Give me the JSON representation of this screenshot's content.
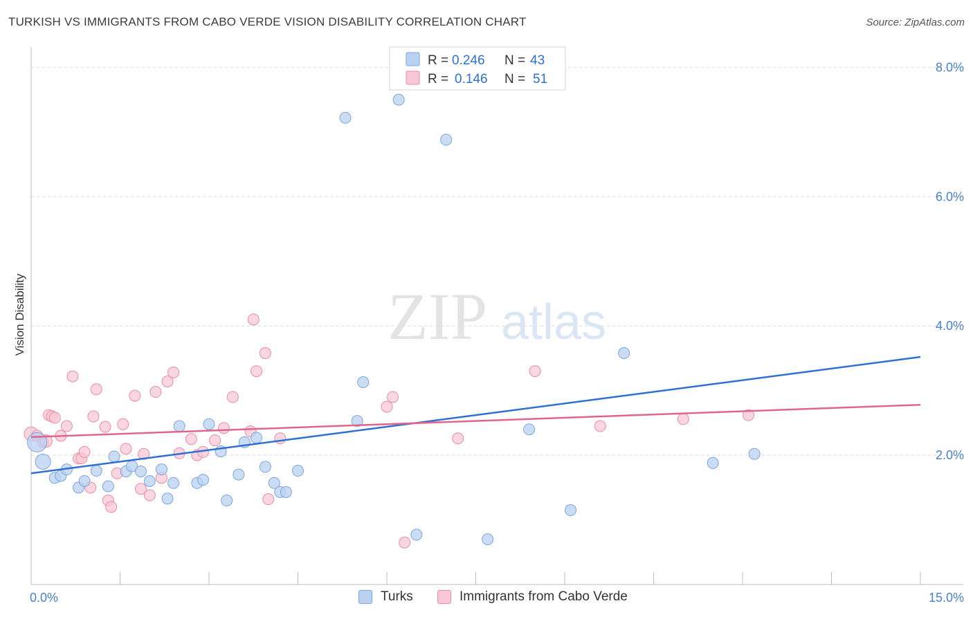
{
  "header": {
    "title": "TURKISH VS IMMIGRANTS FROM CABO VERDE VISION DISABILITY CORRELATION CHART",
    "source": "Source: ZipAtlas.com"
  },
  "watermark": {
    "zip": "ZIP",
    "atlas": "atlas"
  },
  "colors": {
    "blue_fill": "#b9d2f2",
    "blue_stroke": "#7aa5de",
    "blue_line": "#2e6fd4",
    "pink_fill": "#f8c8d6",
    "pink_stroke": "#e98aa7",
    "pink_line": "#e0648e",
    "tick_label": "#4a7fd0",
    "grid": "#d9d9d9"
  },
  "legend_box": {
    "rows": [
      {
        "r_label": "R =",
        "r_value": "0.246",
        "n_label": "N =",
        "n_value": "43"
      },
      {
        "r_label": "R =",
        "r_value": "0.146",
        "n_label": "N =",
        "n_value": "51"
      }
    ]
  },
  "legend_bottom": {
    "items": [
      "Turks",
      "Immigrants from Cabo Verde"
    ]
  },
  "chart_data": {
    "type": "scatter",
    "title": "TURKISH VS IMMIGRANTS FROM CABO VERDE VISION DISABILITY CORRELATION CHART",
    "ylabel": "Vision Disability",
    "xlabel": "",
    "xlim": [
      0,
      15
    ],
    "ylim": [
      0,
      8.4
    ],
    "x_tick_labels": [
      "0.0%",
      "15.0%"
    ],
    "y_ticks": [
      2,
      4,
      6,
      8
    ],
    "y_tick_labels": [
      "2.0%",
      "4.0%",
      "6.0%",
      "8.0%"
    ],
    "grid": true,
    "legend_position": "top-center",
    "series": [
      {
        "name": "Turks",
        "r": 0.246,
        "n": 43,
        "trend": {
          "x": [
            0,
            15
          ],
          "y": [
            1.72,
            3.52
          ]
        },
        "points": [
          [
            0.1,
            2.2,
            14
          ],
          [
            0.2,
            1.9,
            11
          ],
          [
            0.4,
            1.65,
            8
          ],
          [
            0.5,
            1.68,
            8
          ],
          [
            0.6,
            1.78,
            8
          ],
          [
            0.8,
            1.5,
            8
          ],
          [
            0.9,
            1.6,
            8
          ],
          [
            1.1,
            1.76,
            8
          ],
          [
            1.3,
            1.52,
            8
          ],
          [
            1.4,
            1.98,
            8
          ],
          [
            1.6,
            1.75,
            8
          ],
          [
            1.7,
            1.83,
            8
          ],
          [
            1.85,
            1.75,
            8
          ],
          [
            2.0,
            1.6,
            8
          ],
          [
            2.2,
            1.78,
            8
          ],
          [
            2.3,
            1.33,
            8
          ],
          [
            2.4,
            1.57,
            8
          ],
          [
            2.5,
            2.45,
            8
          ],
          [
            2.8,
            1.57,
            8
          ],
          [
            2.9,
            1.62,
            8
          ],
          [
            3.0,
            2.48,
            8
          ],
          [
            3.2,
            2.06,
            8
          ],
          [
            3.3,
            1.3,
            8
          ],
          [
            3.5,
            1.7,
            8
          ],
          [
            3.6,
            2.2,
            8
          ],
          [
            3.8,
            2.27,
            8
          ],
          [
            3.95,
            1.82,
            8
          ],
          [
            4.1,
            1.57,
            8
          ],
          [
            4.2,
            1.43,
            8
          ],
          [
            4.3,
            1.43,
            8
          ],
          [
            4.5,
            1.76,
            8
          ],
          [
            5.3,
            7.22,
            8
          ],
          [
            5.5,
            2.53,
            8
          ],
          [
            5.6,
            3.13,
            8
          ],
          [
            6.2,
            7.5,
            8
          ],
          [
            6.5,
            0.77,
            8
          ],
          [
            7.0,
            6.88,
            8
          ],
          [
            7.7,
            0.7,
            8
          ],
          [
            8.4,
            2.4,
            8
          ],
          [
            9.1,
            1.15,
            8
          ],
          [
            10.0,
            3.58,
            8
          ],
          [
            11.5,
            1.88,
            8
          ],
          [
            12.2,
            2.02,
            8
          ]
        ]
      },
      {
        "name": "Immigrants from Cabo Verde",
        "r": 0.146,
        "n": 51,
        "trend": {
          "x": [
            0,
            15
          ],
          "y": [
            2.28,
            2.78
          ]
        },
        "points": [
          [
            0.0,
            2.33,
            10
          ],
          [
            0.1,
            2.3,
            8
          ],
          [
            0.2,
            2.2,
            8
          ],
          [
            0.3,
            2.62,
            8
          ],
          [
            0.35,
            2.6,
            8
          ],
          [
            0.4,
            2.58,
            8
          ],
          [
            0.5,
            2.3,
            8
          ],
          [
            0.6,
            2.45,
            8
          ],
          [
            0.7,
            3.22,
            8
          ],
          [
            0.8,
            1.95,
            8
          ],
          [
            0.85,
            1.95,
            8
          ],
          [
            0.9,
            2.05,
            8
          ],
          [
            1.0,
            1.5,
            8
          ],
          [
            1.05,
            2.6,
            8
          ],
          [
            1.1,
            3.02,
            8
          ],
          [
            1.25,
            2.44,
            8
          ],
          [
            1.3,
            1.3,
            8
          ],
          [
            1.35,
            1.2,
            8
          ],
          [
            1.45,
            1.72,
            8
          ],
          [
            1.55,
            2.48,
            8
          ],
          [
            1.6,
            2.1,
            8
          ],
          [
            1.75,
            2.92,
            8
          ],
          [
            1.85,
            1.48,
            8
          ],
          [
            2.0,
            1.38,
            8
          ],
          [
            2.1,
            2.98,
            8
          ],
          [
            2.2,
            1.65,
            8
          ],
          [
            2.3,
            3.14,
            8
          ],
          [
            2.4,
            3.28,
            8
          ],
          [
            2.5,
            2.03,
            8
          ],
          [
            2.7,
            2.25,
            8
          ],
          [
            2.8,
            2.0,
            8
          ],
          [
            2.9,
            2.05,
            8
          ],
          [
            3.1,
            2.23,
            8
          ],
          [
            3.25,
            2.42,
            8
          ],
          [
            3.4,
            2.9,
            8
          ],
          [
            3.7,
            2.37,
            8
          ],
          [
            3.75,
            4.1,
            8
          ],
          [
            3.8,
            3.3,
            8
          ],
          [
            3.95,
            3.58,
            8
          ],
          [
            4.0,
            1.32,
            8
          ],
          [
            4.2,
            2.26,
            8
          ],
          [
            6.0,
            2.75,
            8
          ],
          [
            6.1,
            2.9,
            8
          ],
          [
            6.3,
            0.65,
            8
          ],
          [
            7.2,
            2.26,
            8
          ],
          [
            8.5,
            3.3,
            8
          ],
          [
            9.6,
            2.45,
            8
          ],
          [
            11.0,
            2.56,
            8
          ],
          [
            12.1,
            2.62,
            8
          ],
          [
            0.25,
            2.22,
            9
          ],
          [
            1.9,
            2.02,
            8
          ]
        ]
      }
    ]
  }
}
